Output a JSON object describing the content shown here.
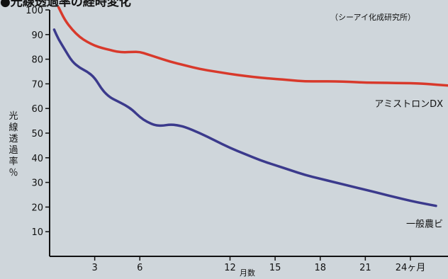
{
  "chart_data": {
    "type": "line",
    "title": "●光線透過率の経時変化",
    "source": "（シーアイ化成研究所）",
    "xlabel": "月数",
    "ylabel": "光線透過率％",
    "x_unit": "ヶ月",
    "xlim": [
      0,
      26.5
    ],
    "ylim": [
      0,
      100
    ],
    "x_ticks": [
      3,
      6,
      12,
      15,
      18,
      21,
      24
    ],
    "y_ticks": [
      10,
      20,
      30,
      40,
      50,
      60,
      70,
      80,
      90,
      100
    ],
    "series": [
      {
        "name": "アミストロンDX",
        "color": "#d8392b",
        "x": [
          0.6,
          1,
          1.5,
          2,
          2.5,
          3,
          3.5,
          4,
          4.5,
          5,
          5.5,
          6,
          6.5,
          7,
          8,
          9,
          10,
          11,
          12,
          13,
          14,
          15,
          16,
          17,
          18,
          19,
          20,
          21,
          22,
          23,
          24,
          25,
          26.5
        ],
        "y": [
          101,
          96,
          92,
          89,
          87,
          85.5,
          84.5,
          83.8,
          83,
          82.8,
          83,
          83,
          82,
          81,
          79,
          77.5,
          76,
          75,
          74,
          73.2,
          72.5,
          72,
          71.5,
          71,
          71,
          71,
          70.8,
          70.5,
          70.5,
          70.3,
          70.3,
          70,
          69.3
        ]
      },
      {
        "name": "一般農ビ",
        "color": "#3b3a8c",
        "x": [
          0.3,
          0.6,
          1,
          1.5,
          2,
          2.5,
          3,
          3.5,
          4,
          4.5,
          5,
          5.5,
          6,
          6.5,
          7,
          7.5,
          8,
          8.5,
          9,
          10,
          11,
          12,
          13,
          14,
          15,
          16,
          17,
          18,
          19,
          20,
          21,
          22,
          23,
          24,
          25,
          25.7
        ],
        "y": [
          92,
          88,
          84,
          79,
          76.5,
          75,
          72.5,
          67.5,
          64.5,
          63,
          61.5,
          59.5,
          56.5,
          54.5,
          53.2,
          53,
          53.5,
          53.2,
          52.5,
          50,
          47,
          44,
          41.5,
          39,
          37,
          35,
          33,
          31.5,
          30,
          28.5,
          27,
          25.5,
          24,
          22.5,
          21.3,
          20.5
        ]
      }
    ],
    "series_label_positions": [
      "upper-right",
      "lower-right"
    ],
    "grid": false,
    "background": "#cfd6db"
  }
}
